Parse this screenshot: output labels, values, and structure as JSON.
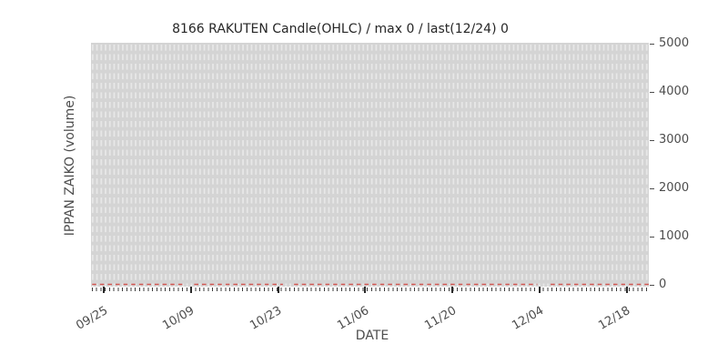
{
  "chart_data": {
    "type": "line",
    "title": "8166 RAKUTEN Candle(OHLC) / max 0 / last(12/24) 0",
    "xlabel": "DATE",
    "ylabel": "IPPAN ZAIKO (volume)",
    "x_tick_labels": [
      "09/25",
      "10/09",
      "10/23",
      "11/06",
      "11/20",
      "12/04",
      "12/18"
    ],
    "y_ticks": [
      0,
      1000,
      2000,
      3000,
      4000,
      5000
    ],
    "ylim": [
      0,
      5000
    ],
    "date_range": {
      "first_tick": "09/25",
      "last_labeled_tick": "12/18",
      "last_value_date": "12/24"
    },
    "series": [
      {
        "name": "IPPAN ZAIKO volume",
        "style": "dashed",
        "color": "#cf5550",
        "constant_value": 0,
        "note": "volume is 0 for every session; max 0; last(12/24) 0"
      }
    ],
    "zero_line_segments_frac": [
      [
        0.002,
        0.166
      ],
      [
        0.185,
        0.344
      ],
      [
        0.364,
        0.8
      ],
      [
        0.824,
        1.0
      ]
    ],
    "grid": {
      "vertical": "dashed, one per session",
      "horizontal": "off"
    },
    "legend": "none",
    "colors": {
      "plot_background": "#d4d4d4",
      "grid_dash": "#e8e8e8",
      "zero_line": "#cf5550",
      "tick_text": "#4d4d4d",
      "title_text": "#262626"
    }
  }
}
